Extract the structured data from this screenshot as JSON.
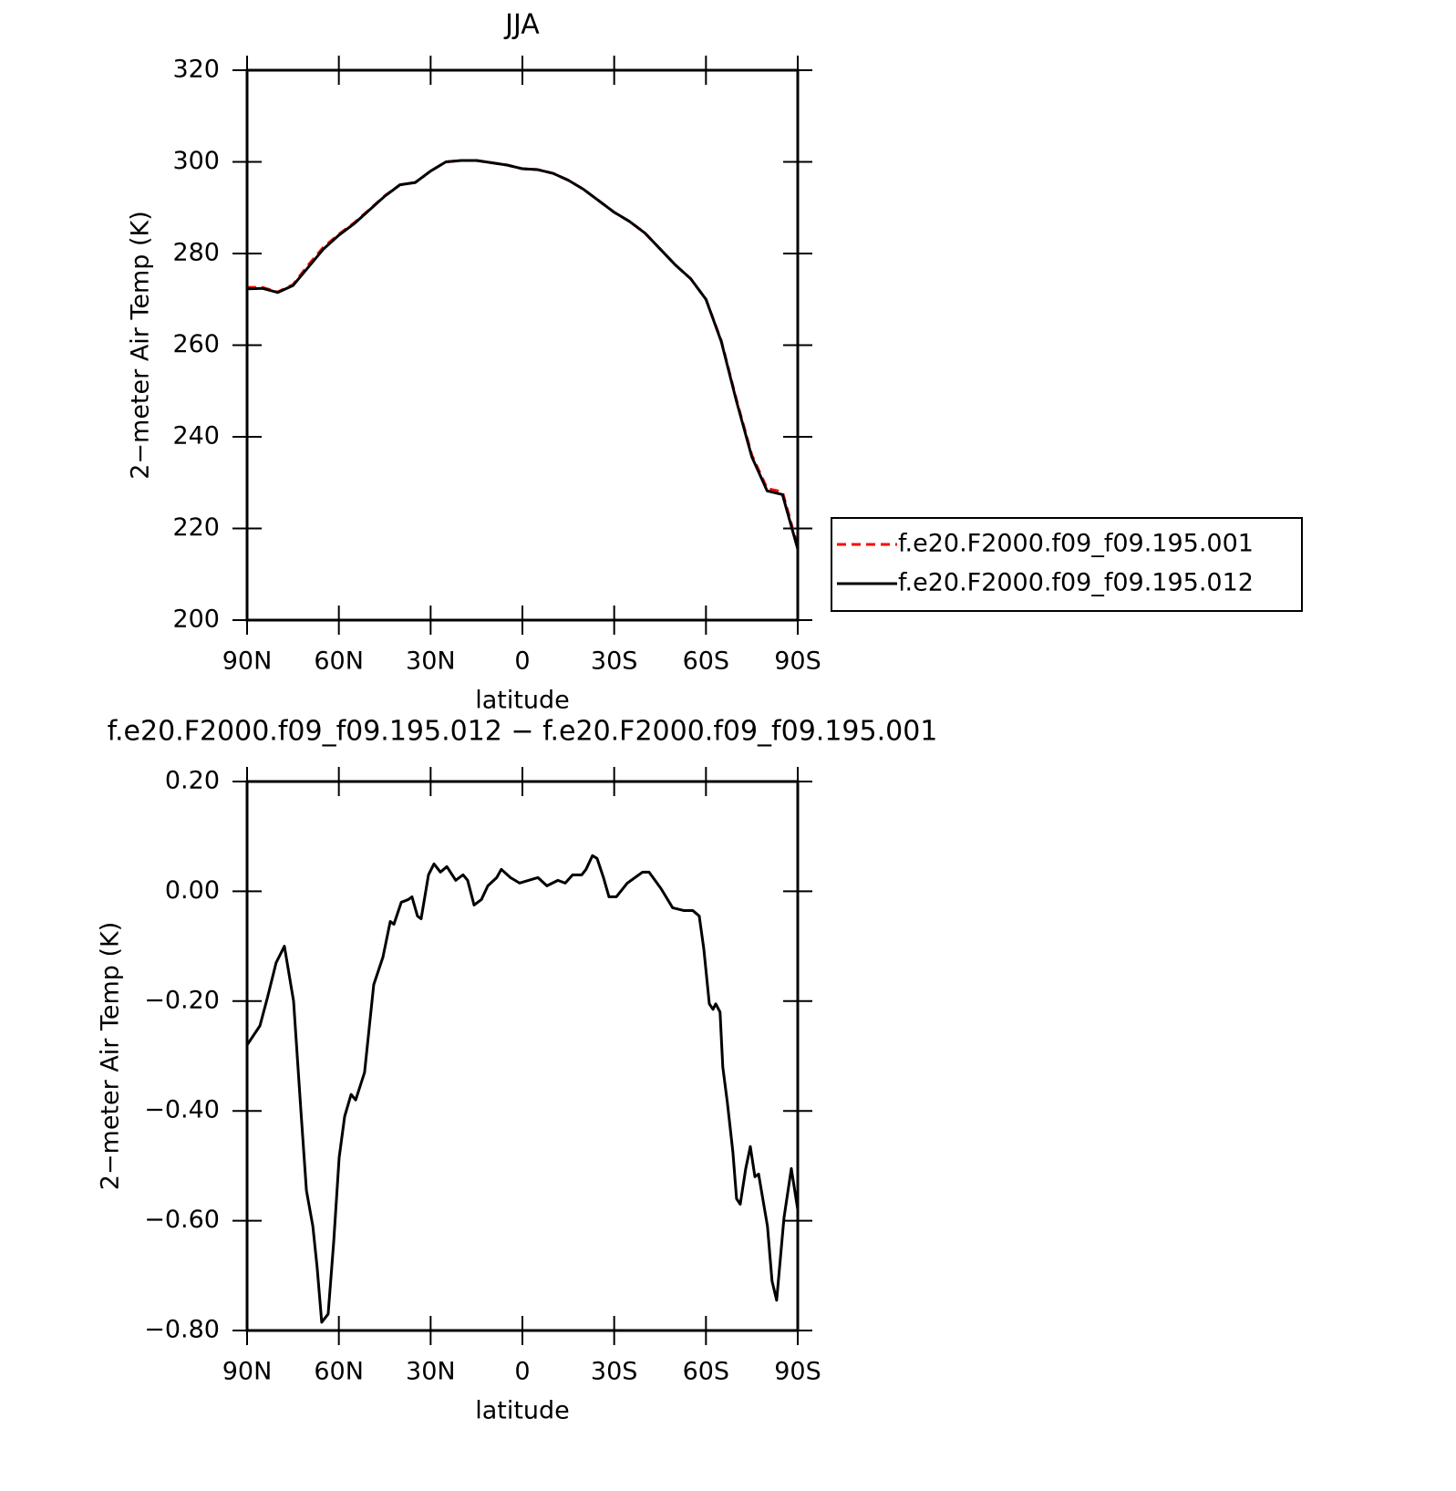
{
  "chart_data": [
    {
      "type": "line",
      "title": "JJA",
      "xlabel": "latitude",
      "ylabel": "2−meter Air Temp (K)",
      "x": [
        90,
        85,
        80,
        75,
        70,
        65,
        60,
        55,
        50,
        45,
        40,
        35,
        30,
        25,
        20,
        15,
        10,
        5,
        0,
        -5,
        -10,
        -15,
        -20,
        -25,
        -30,
        -35,
        -40,
        -45,
        -50,
        -55,
        -60,
        -65,
        -70,
        -75,
        -80,
        -85,
        -90
      ],
      "series": [
        {
          "name": "f.e20.F2000.f09_f09.195.001",
          "color": "#ff0000",
          "linestyle": "dashed",
          "values": [
            272.6,
            272.6,
            271.6,
            273.2,
            277.5,
            281.4,
            284.2,
            286.7,
            289.6,
            292.6,
            295.0,
            295.5,
            298.0,
            300.0,
            300.3,
            300.3,
            299.8,
            299.3,
            298.5,
            298.3,
            297.5,
            296.0,
            294.0,
            291.5,
            289.0,
            287.0,
            284.5,
            281.0,
            277.5,
            274.5,
            270.0,
            261.0,
            248.0,
            236.0,
            228.7,
            228.0,
            216.0
          ]
        },
        {
          "name": "f.e20.F2000.f09_f09.195.012",
          "color": "#000000",
          "linestyle": "solid",
          "values": [
            272.3,
            272.4,
            271.5,
            273.0,
            277.0,
            281.0,
            284.0,
            286.5,
            289.5,
            292.5,
            295.0,
            295.5,
            298.0,
            300.0,
            300.3,
            300.3,
            299.8,
            299.3,
            298.5,
            298.3,
            297.5,
            296.0,
            294.0,
            291.5,
            289.0,
            287.0,
            284.5,
            281.0,
            277.5,
            274.5,
            270.0,
            260.8,
            247.7,
            235.6,
            228.2,
            227.4,
            215.5
          ]
        }
      ],
      "xlim": [
        90,
        -90
      ],
      "xticks": [
        {
          "value": 90,
          "label": "90N"
        },
        {
          "value": 60,
          "label": "60N"
        },
        {
          "value": 30,
          "label": "30N"
        },
        0,
        {
          "value": -30,
          "label": "30S"
        },
        {
          "value": -60,
          "label": "60S"
        },
        {
          "value": -90,
          "label": "90S"
        }
      ],
      "ylim": [
        200,
        320
      ],
      "yticks": [
        200,
        220,
        240,
        260,
        280,
        300,
        320
      ],
      "grid": false,
      "legend": "right"
    },
    {
      "type": "line",
      "title": "f.e20.F2000.f09_f09.195.012 − f.e20.F2000.f09_f09.195.001",
      "xlabel": "latitude",
      "ylabel": "2−meter Air Temp (K)",
      "x": [
        90,
        85.8,
        83.4,
        80.5,
        77.8,
        74.8,
        72.4,
        70.6,
        68.5,
        67.1,
        65.6,
        63.5,
        61.7,
        59.9,
        58.1,
        56.0,
        54.5,
        51.6,
        48.6,
        45.6,
        43.2,
        42.0,
        39.6,
        37.3,
        36.1,
        34.3,
        33.1,
        30.7,
        28.9,
        26.8,
        24.7,
        21.8,
        19.4,
        17.9,
        15.8,
        13.4,
        11.3,
        8.4,
        6.9,
        3.9,
        0.9,
        -2.1,
        -5.1,
        -8.0,
        -11.6,
        -14.0,
        -16.4,
        -19.4,
        -20.8,
        -22.9,
        -24.4,
        -26.5,
        -28.3,
        -30.7,
        -34.3,
        -39.3,
        -41.4,
        -45.3,
        -49.1,
        -52.7,
        -55.7,
        -57.8,
        -59.3,
        -61.1,
        -62.3,
        -63.2,
        -64.6,
        -65.5,
        -67.0,
        -68.8,
        -70.0,
        -71.2,
        -73.0,
        -74.5,
        -76.0,
        -77.2,
        -80.1,
        -81.6,
        -83.1,
        -85.5,
        -87.9,
        -90.0
      ],
      "values": [
        -0.28,
        -0.245,
        -0.195,
        -0.13,
        -0.1,
        -0.2,
        -0.4,
        -0.545,
        -0.61,
        -0.685,
        -0.785,
        -0.77,
        -0.64,
        -0.485,
        -0.41,
        -0.37,
        -0.38,
        -0.33,
        -0.17,
        -0.12,
        -0.055,
        -0.06,
        -0.02,
        -0.015,
        -0.01,
        -0.045,
        -0.05,
        0.03,
        0.05,
        0.035,
        0.045,
        0.02,
        0.03,
        0.02,
        -0.025,
        -0.015,
        0.01,
        0.025,
        0.04,
        0.025,
        0.015,
        0.02,
        0.025,
        0.01,
        0.02,
        0.015,
        0.03,
        0.03,
        0.04,
        0.065,
        0.06,
        0.025,
        -0.01,
        -0.01,
        0.015,
        0.035,
        0.035,
        0.005,
        -0.03,
        -0.035,
        -0.035,
        -0.045,
        -0.105,
        -0.205,
        -0.215,
        -0.205,
        -0.22,
        -0.32,
        -0.385,
        -0.475,
        -0.56,
        -0.57,
        -0.505,
        -0.465,
        -0.52,
        -0.515,
        -0.61,
        -0.71,
        -0.745,
        -0.595,
        -0.505,
        -0.58
      ],
      "color": "#000000",
      "xlim": [
        90,
        -90
      ],
      "xticks": [
        {
          "value": 90,
          "label": "90N"
        },
        {
          "value": 60,
          "label": "60N"
        },
        {
          "value": 30,
          "label": "30N"
        },
        0,
        {
          "value": -30,
          "label": "30S"
        },
        {
          "value": -60,
          "label": "60S"
        },
        {
          "value": -90,
          "label": "90S"
        }
      ],
      "ylim": [
        -0.8,
        0.2
      ],
      "yticks": [
        {
          "value": -0.8,
          "label": "−0.80"
        },
        {
          "value": -0.6,
          "label": "−0.60"
        },
        {
          "value": -0.4,
          "label": "−0.40"
        },
        {
          "value": -0.2,
          "label": "−0.20"
        },
        {
          "value": 0,
          "label": "0.00"
        },
        {
          "value": 0.2,
          "label": "0.20"
        }
      ],
      "grid": false
    }
  ]
}
